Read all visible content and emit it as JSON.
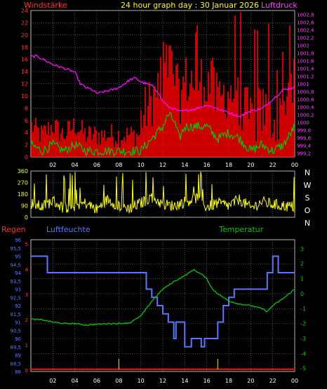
{
  "header": {
    "left_label": "Windstärke",
    "title": "24 hour graph day : 30 Januar 2026",
    "right_label": "Luftdruck"
  },
  "colors": {
    "background": "#000000",
    "grid": "#7a7a7a",
    "wind": "#ff0000",
    "gust": "#ff0000",
    "pressure": "#ff00ff",
    "wind_speed_green": "#00c800",
    "direction": "#ffff00",
    "humidity": "#5a78ff",
    "temperature": "#00c800",
    "rain": "#ff0000",
    "rain_event": "#c8c800",
    "axis_text_left": "#ff3030",
    "axis_text_right": "#ff40ff",
    "axis_text_temp": "#00c800"
  },
  "charts_meta": {
    "x_ticks": [
      "02",
      "04",
      "06",
      "08",
      "10",
      "12",
      "14",
      "16",
      "18",
      "20",
      "22",
      "00"
    ],
    "wind_axis_ticks": [
      "0",
      "2",
      "4",
      "6",
      "8",
      "10",
      "12",
      "14",
      "16",
      "18",
      "20",
      "22",
      "24"
    ],
    "pressure_axis_ticks": [
      "999,2",
      "999,4",
      "999,6",
      "999,8",
      "1000",
      "1000,2",
      "1000,4",
      "1000,6",
      "1000,8",
      "1001",
      "1001,2",
      "1001,4",
      "1001,6",
      "1001,8",
      "1002",
      "1002,2",
      "1002,4",
      "1002,6",
      "1002,8"
    ],
    "dir_axis_ticks": [
      "0",
      "90",
      "180",
      "270",
      "360"
    ],
    "dir_letters": [
      "N",
      "W",
      "S",
      "O",
      "N"
    ],
    "section2_labels": {
      "rain": "Regen",
      "humidity": "Luftfeuchte",
      "temperature": "Temperatur"
    },
    "humidity_axis_ticks": [
      "88",
      "88,5",
      "89",
      "89,5",
      "90",
      "90,5",
      "91",
      "91,5",
      "92",
      "92,5",
      "93",
      "93,5",
      "94",
      "94,5",
      "95",
      "95,5",
      "96"
    ],
    "rain_axis_ticks": [
      "0",
      "1",
      "2",
      "3",
      "4",
      "5"
    ],
    "temp_axis_ticks": [
      "-5",
      "-4",
      "-3",
      "-2",
      "-1",
      "0",
      "1",
      "2",
      "3"
    ]
  },
  "chart_data": [
    {
      "type": "line",
      "xlim": [
        0,
        24
      ],
      "ylim": [
        0,
        24
      ],
      "y2lim": [
        999.1,
        1002.9
      ],
      "series": [
        {
          "axis": "left",
          "points": [
            [
              0,
              2
            ],
            [
              1,
              1
            ],
            [
              2,
              2
            ],
            [
              3,
              1
            ],
            [
              4,
              2
            ],
            [
              5,
              1
            ],
            [
              6,
              1
            ],
            [
              7,
              1
            ],
            [
              8,
              1
            ],
            [
              9,
              1
            ],
            [
              10,
              1
            ],
            [
              10.5,
              2
            ],
            [
              11,
              3
            ],
            [
              11.5,
              4
            ],
            [
              12,
              5
            ],
            [
              12.5,
              7
            ],
            [
              13,
              6
            ],
            [
              13.5,
              3
            ],
            [
              14,
              5
            ],
            [
              15,
              5
            ],
            [
              16,
              5
            ],
            [
              17,
              3
            ],
            [
              18,
              4
            ],
            [
              19,
              3
            ],
            [
              20,
              1
            ],
            [
              21,
              2
            ],
            [
              22,
              1
            ],
            [
              23,
              2
            ],
            [
              24,
              5
            ]
          ]
        },
        {
          "axis": "right",
          "points": [
            [
              0,
              1001.7
            ],
            [
              0.5,
              1001.72
            ],
            [
              1,
              1001.65
            ],
            [
              2,
              1001.5
            ],
            [
              3,
              1001.4
            ],
            [
              4,
              1001.3
            ],
            [
              4.5,
              1001.0
            ],
            [
              5,
              1000.9
            ],
            [
              5.5,
              1000.85
            ],
            [
              6,
              1000.75
            ],
            [
              6.5,
              1000.78
            ],
            [
              7,
              1000.82
            ],
            [
              7.5,
              1000.85
            ],
            [
              8,
              1000.9
            ],
            [
              8.5,
              1001.0
            ],
            [
              9,
              1001.1
            ],
            [
              9.5,
              1001.15
            ],
            [
              10,
              1001.05
            ],
            [
              10.5,
              1001.0
            ],
            [
              11,
              1000.95
            ],
            [
              11.5,
              1000.8
            ],
            [
              12,
              1000.55
            ],
            [
              12.5,
              1000.4
            ],
            [
              13,
              1000.35
            ],
            [
              13.5,
              1000.28
            ],
            [
              14,
              1000.3
            ],
            [
              15,
              1000.35
            ],
            [
              16,
              1000.45
            ],
            [
              17,
              1000.35
            ],
            [
              18,
              1000.25
            ],
            [
              19,
              1000.15
            ],
            [
              20,
              1000.3
            ],
            [
              21,
              1000.35
            ],
            [
              22,
              1000.6
            ],
            [
              23,
              1000.85
            ],
            [
              24,
              1000.9
            ]
          ]
        }
      ]
    },
    {
      "type": "line",
      "xlim": [
        0,
        24
      ],
      "ylim": [
        0,
        360
      ],
      "series": [
        {
          "points": [
            [
              0,
              110
            ],
            [
              1,
              80
            ],
            [
              2,
              130
            ],
            [
              3,
              70
            ],
            [
              4,
              90
            ],
            [
              5,
              110
            ],
            [
              6,
              60
            ],
            [
              7,
              140
            ],
            [
              8,
              90
            ],
            [
              9,
              70
            ],
            [
              10,
              110
            ],
            [
              11,
              160
            ],
            [
              12,
              100
            ],
            [
              13,
              90
            ],
            [
              14,
              120
            ],
            [
              15,
              150
            ],
            [
              16,
              80
            ],
            [
              17,
              110
            ],
            [
              18,
              90
            ],
            [
              19,
              140
            ],
            [
              20,
              70
            ],
            [
              21,
              120
            ],
            [
              22,
              100
            ],
            [
              23,
              90
            ],
            [
              24,
              80
            ]
          ]
        }
      ]
    },
    {
      "type": "line",
      "xlim": [
        0,
        24
      ],
      "ylim": [
        88,
        96
      ],
      "y2lim": [
        -5.2,
        3.6
      ],
      "series": [
        {
          "axis": "left",
          "points": [
            [
              0,
              95
            ],
            [
              1.5,
              95
            ],
            [
              1.5,
              94
            ],
            [
              10.5,
              94
            ],
            [
              10.5,
              93
            ],
            [
              11,
              93
            ],
            [
              11,
              92.5
            ],
            [
              11.5,
              92.5
            ],
            [
              11.5,
              92
            ],
            [
              12,
              92
            ],
            [
              12,
              91.5
            ],
            [
              12.5,
              91.5
            ],
            [
              12.5,
              91
            ],
            [
              13,
              91
            ],
            [
              13,
              90
            ],
            [
              13.2,
              90
            ],
            [
              13.2,
              91
            ],
            [
              14,
              91
            ],
            [
              14,
              89.5
            ],
            [
              14.6,
              89.5
            ],
            [
              14.6,
              90
            ],
            [
              15.5,
              90
            ],
            [
              15.5,
              89.5
            ],
            [
              15.8,
              89.5
            ],
            [
              15.8,
              90
            ],
            [
              17,
              90
            ],
            [
              17,
              91
            ],
            [
              17.5,
              91
            ],
            [
              17.5,
              92
            ],
            [
              18,
              92
            ],
            [
              18,
              92.5
            ],
            [
              18.5,
              92.5
            ],
            [
              18.5,
              93
            ],
            [
              21.5,
              93
            ],
            [
              21.5,
              94
            ],
            [
              22,
              94
            ],
            [
              22,
              95
            ],
            [
              22.5,
              95
            ],
            [
              22.5,
              94
            ],
            [
              24,
              94
            ]
          ]
        },
        {
          "axis": "right",
          "points": [
            [
              0,
              -1.7
            ],
            [
              1,
              -1.75
            ],
            [
              2,
              -1.9
            ],
            [
              3,
              -2.0
            ],
            [
              4,
              -2.0
            ],
            [
              5,
              -2.1
            ],
            [
              6,
              -2.05
            ],
            [
              7,
              -2.0
            ],
            [
              8,
              -2.0
            ],
            [
              9,
              -1.95
            ],
            [
              10,
              -1.5
            ],
            [
              10.5,
              -1.0
            ],
            [
              11,
              -0.5
            ],
            [
              12,
              0.3
            ],
            [
              13,
              0.8
            ],
            [
              14,
              1.2
            ],
            [
              14.8,
              1.6
            ],
            [
              15.5,
              1.3
            ],
            [
              16,
              1.0
            ],
            [
              16.5,
              0.3
            ],
            [
              17,
              0
            ],
            [
              18,
              -0.5
            ],
            [
              19,
              -0.7
            ],
            [
              20,
              -0.8
            ],
            [
              21,
              -1.0
            ],
            [
              21.5,
              -1.2
            ],
            [
              22,
              -0.8
            ],
            [
              23,
              -0.3
            ],
            [
              24,
              0.3
            ]
          ]
        }
      ],
      "rain_events_hours": [
        8.0,
        17.0
      ]
    }
  ]
}
